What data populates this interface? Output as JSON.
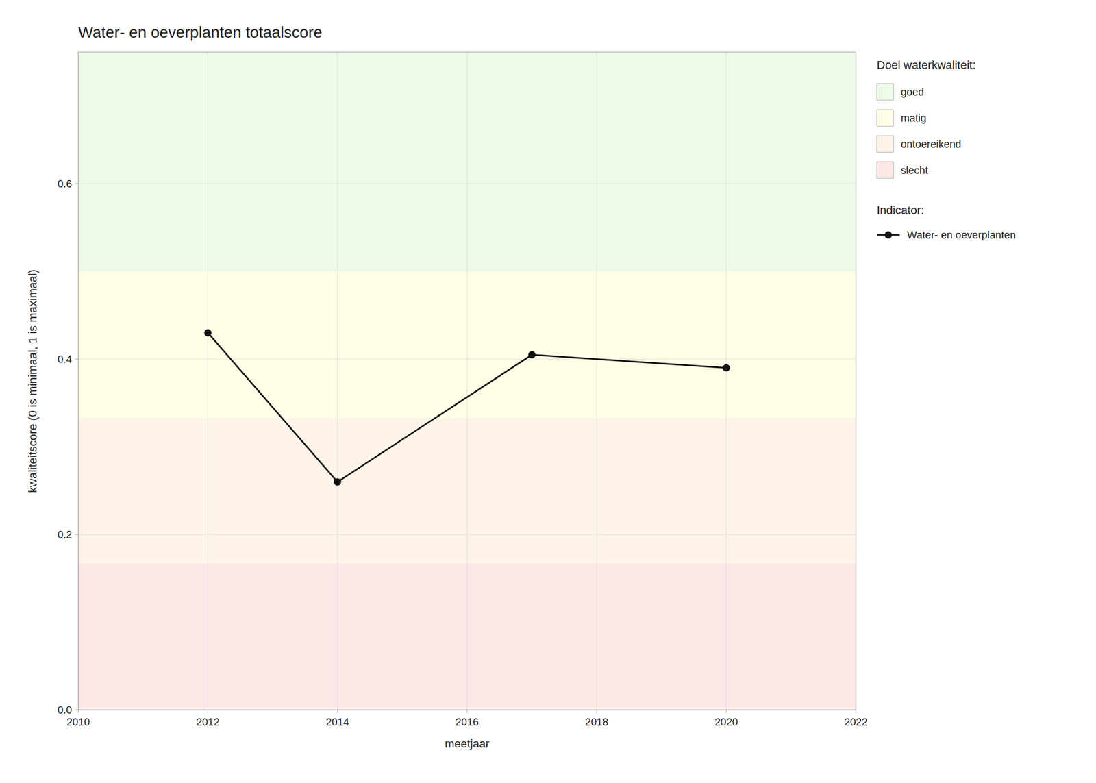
{
  "chart_data": {
    "type": "line",
    "title": "Water- en oeverplanten totaalscore",
    "x_label": "meetjaar",
    "y_label": "kwaliteitscore (0 is minimaal, 1 is maximaal)",
    "x": [
      2012,
      2014,
      2017,
      2020
    ],
    "series": [
      {
        "name": "Water- en oeverplanten",
        "color": "#111111",
        "marker": "circle",
        "values": [
          0.43,
          0.26,
          0.405,
          0.39
        ]
      }
    ],
    "xlim": [
      2010,
      2022
    ],
    "ylim": [
      0.0,
      0.75
    ],
    "xticks": [
      2010,
      2012,
      2014,
      2016,
      2018,
      2020,
      2022
    ],
    "yticks": [
      {
        "value": 0.0,
        "label": "0.0"
      },
      0.2,
      0.4,
      0.6
    ],
    "grid": true,
    "legend": "right",
    "bands_title": "Doel waterkwaliteit:",
    "legend_title": "Indicator:",
    "bands": [
      {
        "name": "goed",
        "ymin": 0.5,
        "ymax": 0.75,
        "color": "#edfae6"
      },
      {
        "name": "matig",
        "ymin": 0.333,
        "ymax": 0.5,
        "color": "#fefee6"
      },
      {
        "name": "ontoereikend",
        "ymin": 0.167,
        "ymax": 0.333,
        "color": "#fdf3e7"
      },
      {
        "name": "slecht",
        "ymin": 0.0,
        "ymax": 0.167,
        "color": "#fde8e8"
      }
    ]
  }
}
